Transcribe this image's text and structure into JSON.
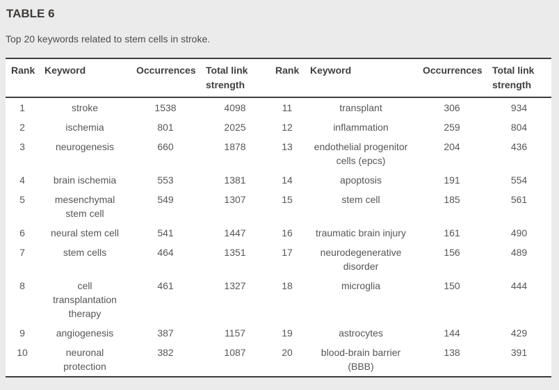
{
  "title": "TABLE 6",
  "caption": "Top 20 keywords related to stem cells in stroke.",
  "colors": {
    "page_background": "#ebebeb",
    "table_background": "#ffffff",
    "rule": "#3c3c3c",
    "title_text": "#3e3a38",
    "body_text": "#565656"
  },
  "table": {
    "headers": [
      "Rank",
      "Keyword",
      "Occurrences",
      "Total link strength",
      "Rank",
      "Keyword",
      "Occurrences",
      "Total link strength"
    ],
    "rows": [
      [
        {
          "rank": "1",
          "keyword": "stroke",
          "occurrences": "1538",
          "total_link_strength": "4098"
        },
        {
          "rank": "11",
          "keyword": "transplant",
          "occurrences": "306",
          "total_link_strength": "934"
        }
      ],
      [
        {
          "rank": "2",
          "keyword": "ischemia",
          "occurrences": "801",
          "total_link_strength": "2025"
        },
        {
          "rank": "12",
          "keyword": "inflammation",
          "occurrences": "259",
          "total_link_strength": "804"
        }
      ],
      [
        {
          "rank": "3",
          "keyword": "neurogenesis",
          "occurrences": "660",
          "total_link_strength": "1878"
        },
        {
          "rank": "13",
          "keyword": "endothelial progenitor cells (epcs)",
          "occurrences": "204",
          "total_link_strength": "436"
        }
      ],
      [
        {
          "rank": "4",
          "keyword": "brain ischemia",
          "occurrences": "553",
          "total_link_strength": "1381"
        },
        {
          "rank": "14",
          "keyword": "apoptosis",
          "occurrences": "191",
          "total_link_strength": "554"
        }
      ],
      [
        {
          "rank": "5",
          "keyword": "mesenchymal stem cell",
          "occurrences": "549",
          "total_link_strength": "1307"
        },
        {
          "rank": "15",
          "keyword": "stem cell",
          "occurrences": "185",
          "total_link_strength": "561"
        }
      ],
      [
        {
          "rank": "6",
          "keyword": "neural stem cell",
          "occurrences": "541",
          "total_link_strength": "1447"
        },
        {
          "rank": "16",
          "keyword": "traumatic brain injury",
          "occurrences": "161",
          "total_link_strength": "490"
        }
      ],
      [
        {
          "rank": "7",
          "keyword": "stem cells",
          "occurrences": "464",
          "total_link_strength": "1351"
        },
        {
          "rank": "17",
          "keyword": "neurodegenerative disorder",
          "occurrences": "156",
          "total_link_strength": "489"
        }
      ],
      [
        {
          "rank": "8",
          "keyword": "cell transplantation therapy",
          "occurrences": "461",
          "total_link_strength": "1327"
        },
        {
          "rank": "18",
          "keyword": "microglia",
          "occurrences": "150",
          "total_link_strength": "444"
        }
      ],
      [
        {
          "rank": "9",
          "keyword": "angiogenesis",
          "occurrences": "387",
          "total_link_strength": "1157"
        },
        {
          "rank": "19",
          "keyword": "astrocytes",
          "occurrences": "144",
          "total_link_strength": "429"
        }
      ],
      [
        {
          "rank": "10",
          "keyword": "neuronal protection",
          "occurrences": "382",
          "total_link_strength": "1087"
        },
        {
          "rank": "20",
          "keyword": "blood-brain barrier (BBB)",
          "occurrences": "138",
          "total_link_strength": "391"
        }
      ]
    ]
  }
}
